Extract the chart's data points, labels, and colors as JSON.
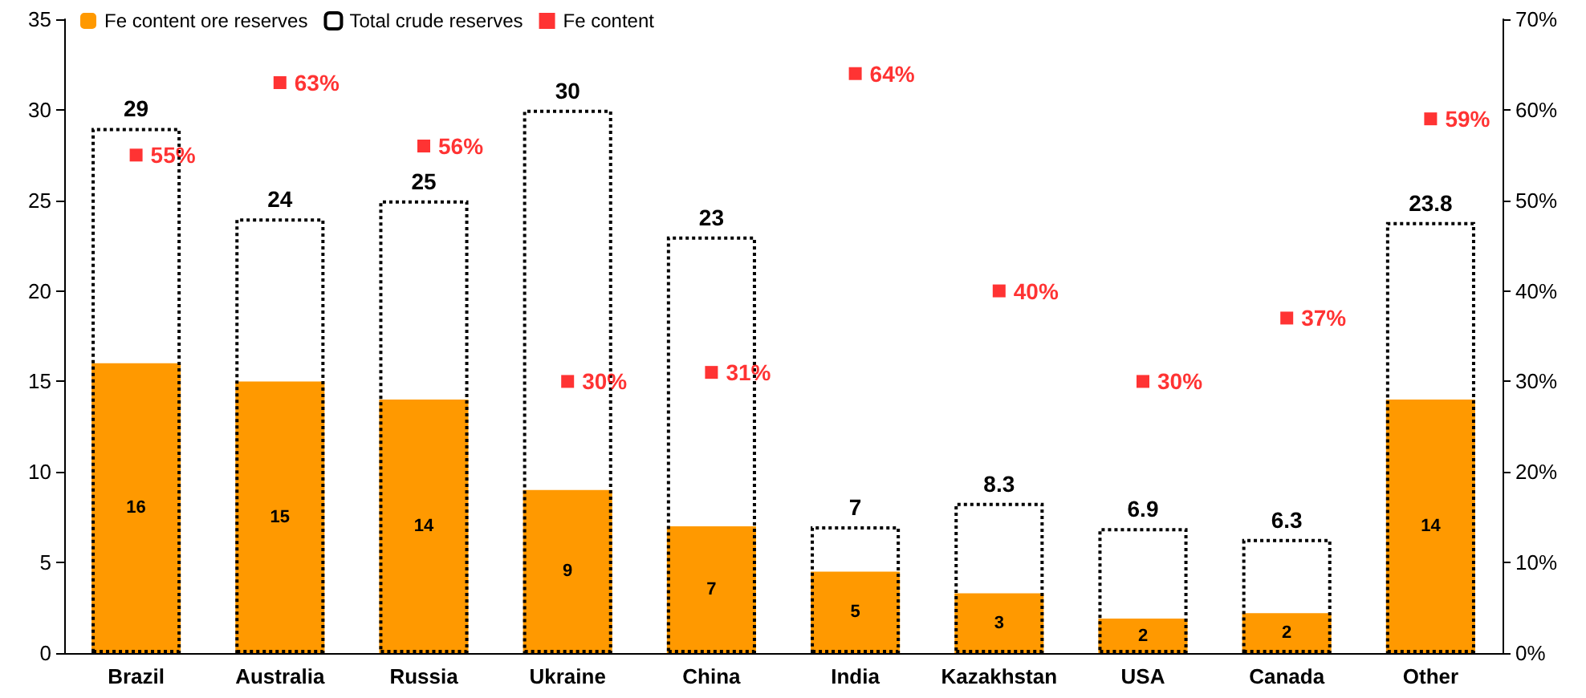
{
  "chart_data": {
    "type": "bar",
    "categories": [
      "Brazil",
      "Australia",
      "Russia",
      "Ukraine",
      "China",
      "India",
      "Kazakhstan",
      "USA",
      "Canada",
      "Other"
    ],
    "series": [
      {
        "name": "Fe content ore reserves",
        "color": "#ff9900",
        "values": [
          16,
          15,
          14,
          9,
          7,
          4.5,
          3.3,
          1.9,
          2.2,
          14
        ],
        "value_labels": [
          "16",
          "15",
          "14",
          "9",
          "7",
          "5",
          "3",
          "2",
          "2",
          "14"
        ]
      },
      {
        "name": "Total crude reserves",
        "color": "#000000",
        "line_style": "dotted",
        "values": [
          29,
          24,
          25,
          30,
          23,
          7,
          8.3,
          6.9,
          6.3,
          23.8
        ],
        "value_labels": [
          "29",
          "24",
          "25",
          "30",
          "23",
          "7",
          "8.3",
          "6.9",
          "6.3",
          "23.8"
        ]
      },
      {
        "name": "Fe content",
        "type": "scatter",
        "axis": "y2",
        "color": "#ff0000",
        "marker": "square",
        "values": [
          55,
          63,
          56,
          30,
          31,
          64,
          40,
          30,
          37,
          59
        ],
        "value_labels": [
          "55%",
          "63%",
          "56%",
          "30%",
          "31%",
          "64%",
          "40%",
          "30%",
          "37%",
          "59%"
        ]
      }
    ],
    "ylim": [
      0,
      35
    ],
    "yticks": [
      0,
      5,
      10,
      15,
      20,
      25,
      30,
      35
    ],
    "y2lim": [
      0,
      70
    ],
    "y2ticks": [
      {
        "value": 0,
        "label": "0%"
      },
      {
        "value": 10,
        "label": "10%"
      },
      {
        "value": 20,
        "label": "20%"
      },
      {
        "value": 30,
        "label": "30%"
      },
      {
        "value": 40,
        "label": "40%"
      },
      {
        "value": 50,
        "label": "50%"
      },
      {
        "value": 60,
        "label": "60%"
      },
      {
        "value": 70,
        "label": "70%"
      }
    ],
    "grid": false,
    "legend": "top left"
  }
}
